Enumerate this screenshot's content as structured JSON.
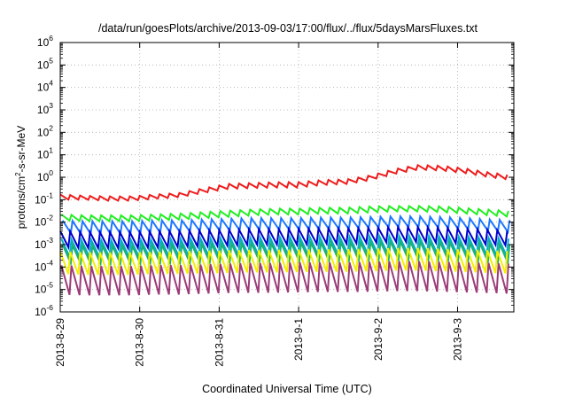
{
  "chart_data": {
    "type": "line",
    "title": "/data/run/goesPlots/archive/2013-09-03/17:00/flux/../flux/5daysMarsFluxes.txt",
    "xlabel": "Coordinated Universal Time (UTC)",
    "ylabel": "protons/cm²-s-sr-MeV",
    "ylabel_parts": {
      "pre": "protons/cm",
      "sup": "2",
      "post": "-s-sr-MeV"
    },
    "x_range": [
      "2013-08-29",
      "2013-09-03T17:00"
    ],
    "x_ticks": [
      "2013-8-29",
      "2013-8-30",
      "2013-8-31",
      "2013-9-1",
      "2013-9-2",
      "2013-9-3"
    ],
    "y_scale": "log",
    "y_range": [
      1e-06,
      1000000.0
    ],
    "y_ticks": [
      {
        "value": 1e-06,
        "base": "10",
        "exp": "-6"
      },
      {
        "value": 1e-05,
        "base": "10",
        "exp": "-5"
      },
      {
        "value": 0.0001,
        "base": "10",
        "exp": "-4"
      },
      {
        "value": 0.001,
        "base": "10",
        "exp": "-3"
      },
      {
        "value": 0.01,
        "base": "10",
        "exp": "-2"
      },
      {
        "value": 0.1,
        "base": "10",
        "exp": "-1"
      },
      {
        "value": 1,
        "base": "10",
        "exp": "0"
      },
      {
        "value": 10,
        "base": "10",
        "exp": "1"
      },
      {
        "value": 100,
        "base": "10",
        "exp": "2"
      },
      {
        "value": 1000,
        "base": "10",
        "exp": "3"
      },
      {
        "value": 10000,
        "base": "10",
        "exp": "4"
      },
      {
        "value": 100000,
        "base": "10",
        "exp": "5"
      },
      {
        "value": 1000000,
        "base": "10",
        "exp": "6"
      }
    ],
    "grid": true,
    "series": [
      {
        "color": "#ee1c1c",
        "low_values": [
          0.1,
          0.1,
          0.09,
          0.09,
          0.11,
          0.13,
          0.2,
          0.3,
          0.33,
          0.35,
          0.35,
          0.45,
          0.5,
          0.75,
          1.4,
          2.2,
          2.0,
          1.5,
          1.0,
          0.75
        ],
        "high_values": [
          0.17,
          0.15,
          0.14,
          0.14,
          0.17,
          0.2,
          0.32,
          0.5,
          0.55,
          0.6,
          0.6,
          0.75,
          0.8,
          1.2,
          2.3,
          3.5,
          3.2,
          2.4,
          1.6,
          1.2
        ]
      },
      {
        "color": "#22ee22",
        "low_values": [
          0.012,
          0.011,
          0.011,
          0.011,
          0.012,
          0.013,
          0.015,
          0.017,
          0.02,
          0.022,
          0.022,
          0.024,
          0.024,
          0.027,
          0.03,
          0.03,
          0.028,
          0.024,
          0.02,
          0.017
        ],
        "high_values": [
          0.022,
          0.02,
          0.02,
          0.02,
          0.022,
          0.024,
          0.028,
          0.032,
          0.036,
          0.04,
          0.04,
          0.044,
          0.044,
          0.05,
          0.052,
          0.052,
          0.05,
          0.042,
          0.036,
          0.03
        ]
      },
      {
        "color": "#1e78ff",
        "low_values": [
          0.0035,
          0.003,
          0.003,
          0.003,
          0.0033,
          0.0036,
          0.004,
          0.0042,
          0.0045,
          0.0045,
          0.0046,
          0.0048,
          0.005,
          0.0055,
          0.006,
          0.006,
          0.0055,
          0.0048,
          0.004,
          0.0035
        ],
        "high_values": [
          0.012,
          0.011,
          0.011,
          0.011,
          0.012,
          0.012,
          0.013,
          0.014,
          0.015,
          0.015,
          0.015,
          0.016,
          0.016,
          0.017,
          0.018,
          0.018,
          0.017,
          0.015,
          0.013,
          0.012
        ]
      },
      {
        "color": "#0000cc",
        "low_values": [
          0.0008,
          0.0007,
          0.0007,
          0.0007,
          0.00075,
          0.0008,
          0.00085,
          0.0009,
          0.001,
          0.001,
          0.001,
          0.0011,
          0.0011,
          0.0012,
          0.0013,
          0.0013,
          0.0012,
          0.0011,
          0.001,
          0.0009
        ],
        "high_values": [
          0.004,
          0.0036,
          0.0036,
          0.0036,
          0.0038,
          0.004,
          0.0042,
          0.0045,
          0.0048,
          0.0048,
          0.005,
          0.0052,
          0.0052,
          0.0055,
          0.006,
          0.006,
          0.0056,
          0.005,
          0.0045,
          0.004
        ]
      },
      {
        "color": "#00b0c8",
        "low_values": [
          0.0003,
          0.00028,
          0.00028,
          0.00028,
          0.0003,
          0.0003,
          0.00032,
          0.00034,
          0.00035,
          0.00035,
          0.00036,
          0.00037,
          0.00038,
          0.0004,
          0.00042,
          0.00042,
          0.0004,
          0.00037,
          0.00034,
          0.0003
        ],
        "high_values": [
          0.0018,
          0.0016,
          0.0016,
          0.0016,
          0.0017,
          0.0018,
          0.0019,
          0.002,
          0.0021,
          0.0021,
          0.0022,
          0.0023,
          0.0023,
          0.0024,
          0.0025,
          0.0025,
          0.0024,
          0.0022,
          0.002,
          0.0018
        ]
      },
      {
        "color": "#1fb070",
        "low_values": [
          0.00015,
          0.00014,
          0.00014,
          0.00014,
          0.00015,
          0.00015,
          0.00016,
          0.00017,
          0.00018,
          0.00018,
          0.00018,
          0.00019,
          0.00019,
          0.0002,
          0.00021,
          0.00021,
          0.0002,
          0.00019,
          0.00017,
          0.00015
        ],
        "high_values": [
          0.001,
          0.0009,
          0.0009,
          0.0009,
          0.00095,
          0.001,
          0.00105,
          0.0011,
          0.00115,
          0.00115,
          0.0012,
          0.00125,
          0.00125,
          0.0013,
          0.0014,
          0.0014,
          0.0013,
          0.0012,
          0.0011,
          0.001
        ]
      },
      {
        "color": "#f5ee00",
        "low_values": [
          5e-05,
          4.5e-05,
          4.5e-05,
          4.5e-05,
          5e-05,
          5e-05,
          5.2e-05,
          5.5e-05,
          5.8e-05,
          5.8e-05,
          6e-05,
          6.2e-05,
          6.2e-05,
          6.5e-05,
          7e-05,
          7e-05,
          6.5e-05,
          6e-05,
          5.5e-05,
          5e-05
        ],
        "high_values": [
          0.0005,
          0.00045,
          0.00045,
          0.00045,
          0.00048,
          0.0005,
          0.00052,
          0.00055,
          0.00058,
          0.00058,
          0.0006,
          0.00062,
          0.00062,
          0.00065,
          0.0007,
          0.0007,
          0.00065,
          0.0006,
          0.00055,
          0.0005
        ]
      },
      {
        "color": "#9b3c78",
        "low_values": [
          6e-06,
          5.5e-06,
          5.5e-06,
          5.5e-06,
          6e-06,
          6e-06,
          6.5e-06,
          7e-06,
          7.2e-06,
          7.2e-06,
          7.5e-06,
          7.8e-06,
          7.8e-06,
          8e-06,
          8.5e-06,
          8.5e-06,
          8e-06,
          7.5e-06,
          7e-06,
          6.5e-06
        ],
        "high_values": [
          0.00012,
          0.00011,
          0.00011,
          0.00011,
          0.00012,
          0.00012,
          0.00013,
          0.00014,
          0.00015,
          0.00015,
          0.00016,
          0.00016,
          0.00016,
          0.00017,
          0.00018,
          0.00018,
          0.00017,
          0.00016,
          0.00015,
          0.00014
        ]
      }
    ]
  }
}
